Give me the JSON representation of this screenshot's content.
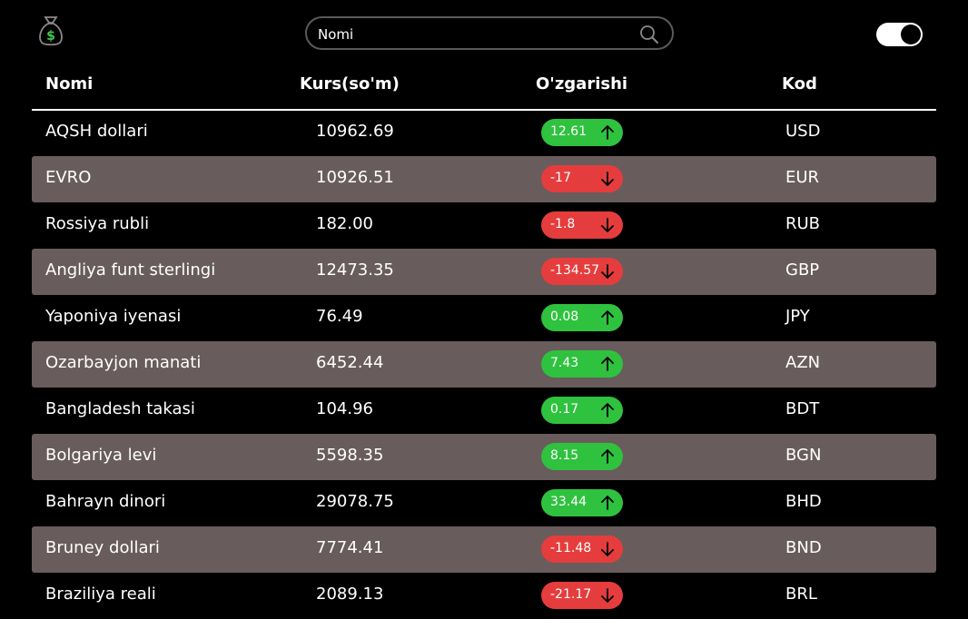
{
  "header": {
    "logo_icon": "money-bag-icon",
    "search_placeholder": "Nomi",
    "search_icon": "search-icon",
    "toggle_state": "on"
  },
  "table": {
    "columns": [
      "Nomi",
      "Kurs(so'm)",
      "O'zgarishi",
      "Kod"
    ],
    "rows": [
      {
        "name": "AQSH dollari",
        "rate": "10962.69",
        "change": "12.61",
        "direction": "up",
        "code": "USD"
      },
      {
        "name": "EVRO",
        "rate": "10926.51",
        "change": "-17",
        "direction": "down",
        "code": "EUR"
      },
      {
        "name": "Rossiya rubli",
        "rate": "182.00",
        "change": "-1.8",
        "direction": "down",
        "code": "RUB"
      },
      {
        "name": "Angliya funt sterlingi",
        "rate": "12473.35",
        "change": "-134.57",
        "direction": "down",
        "code": "GBP"
      },
      {
        "name": "Yaponiya iyenasi",
        "rate": "76.49",
        "change": "0.08",
        "direction": "up",
        "code": "JPY"
      },
      {
        "name": "Ozarbayjon manati",
        "rate": "6452.44",
        "change": "7.43",
        "direction": "up",
        "code": "AZN"
      },
      {
        "name": "Bangladesh takasi",
        "rate": "104.96",
        "change": "0.17",
        "direction": "up",
        "code": "BDT"
      },
      {
        "name": "Bolgariya levi",
        "rate": "5598.35",
        "change": "8.15",
        "direction": "up",
        "code": "BGN"
      },
      {
        "name": "Bahrayn dinori",
        "rate": "29078.75",
        "change": "33.44",
        "direction": "up",
        "code": "BHD"
      },
      {
        "name": "Bruney dollari",
        "rate": "7774.41",
        "change": "-11.48",
        "direction": "down",
        "code": "BND"
      },
      {
        "name": "Braziliya reali",
        "rate": "2089.13",
        "change": "-21.17",
        "direction": "down",
        "code": "BRL"
      }
    ]
  },
  "colors": {
    "background": "#000000",
    "row_shade": "#695c5c",
    "up": "#2fc23f",
    "down": "#e53d3d"
  }
}
